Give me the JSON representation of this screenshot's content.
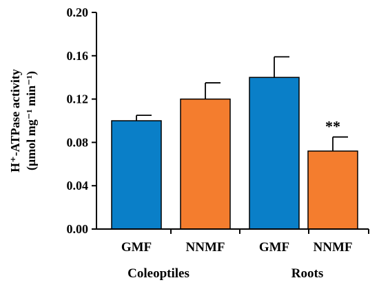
{
  "chart_data": {
    "type": "bar",
    "ylabel_line1": "H⁺-ATPase activity",
    "ylabel_line2": "(μmol mg⁻¹ min⁻¹)",
    "ylim": [
      0,
      0.2
    ],
    "yticks": [
      "0.00",
      "0.04",
      "0.08",
      "0.12",
      "0.16",
      "0.20"
    ],
    "ytick_values": [
      0,
      0.04,
      0.08,
      0.12,
      0.16,
      0.2
    ],
    "grid": false,
    "bars": [
      {
        "category": "GMF",
        "group": "Coleoptiles",
        "value": 0.1,
        "error": 0.005,
        "color": "#0a7fc8",
        "annotation": ""
      },
      {
        "category": "NNMF",
        "group": "Coleoptiles",
        "value": 0.12,
        "error": 0.015,
        "color": "#f47d2e",
        "annotation": ""
      },
      {
        "category": "GMF",
        "group": "Roots",
        "value": 0.14,
        "error": 0.019,
        "color": "#0a7fc8",
        "annotation": ""
      },
      {
        "category": "NNMF",
        "group": "Roots",
        "value": 0.072,
        "error": 0.013,
        "color": "#f47d2e",
        "annotation": "**"
      }
    ],
    "groups": [
      "Coleoptiles",
      "Roots"
    ]
  }
}
